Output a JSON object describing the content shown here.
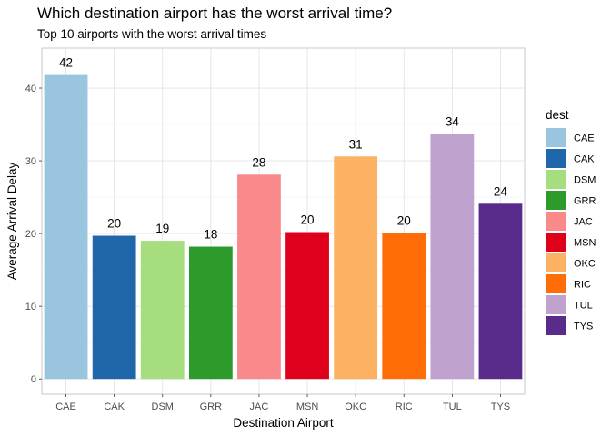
{
  "chart_data": {
    "type": "bar",
    "title": "Which destination airport has the worst arrival time?",
    "subtitle": "Top 10 airports with the worst arrival times",
    "xlabel": "Destination Airport",
    "ylabel": "Average Arrival Delay",
    "categories": [
      "CAE",
      "CAK",
      "DSM",
      "GRR",
      "JAC",
      "MSN",
      "OKC",
      "RIC",
      "TUL",
      "TYS"
    ],
    "values": [
      41.8,
      19.7,
      19.0,
      18.2,
      28.1,
      20.2,
      30.6,
      20.1,
      33.7,
      24.1
    ],
    "data_labels": [
      "42",
      "20",
      "19",
      "18",
      "28",
      "20",
      "31",
      "20",
      "34",
      "24"
    ],
    "colors": [
      "#9ac5de",
      "#1f66aa",
      "#a6dd7e",
      "#2d9a2c",
      "#f9898a",
      "#df011c",
      "#fcb262",
      "#ff6d09",
      "#bfa3ce",
      "#592b8b"
    ],
    "ylim": [
      -2.1,
      45.5
    ],
    "yticks": [
      0,
      10,
      20,
      30,
      40
    ],
    "grid": true,
    "legend": {
      "title": "dest",
      "position": "right"
    }
  }
}
